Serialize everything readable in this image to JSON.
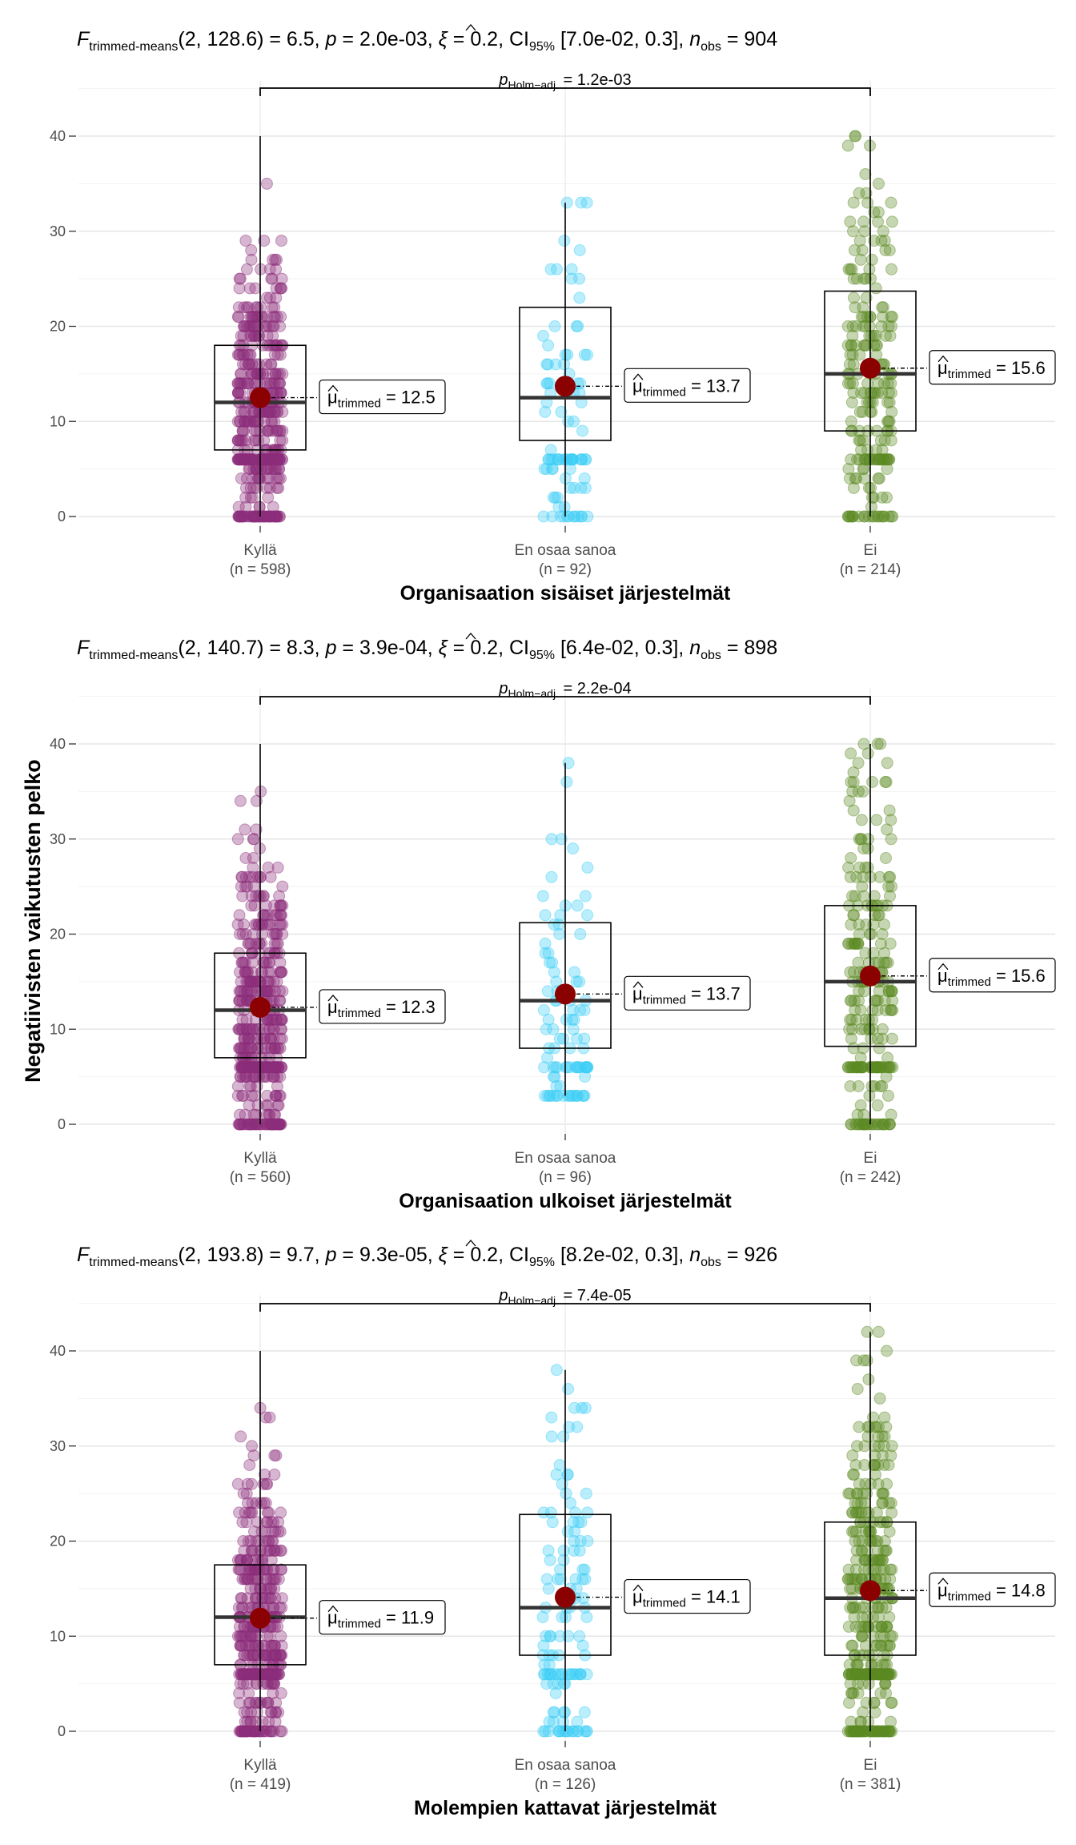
{
  "colors": {
    "group_1": "#8B2D7A",
    "group_2": "#3CCDF5",
    "group_3": "#5C8A21",
    "mean_point": "#8B0000",
    "grid": "#ebebeb"
  },
  "ylabel": "Negatiivisten vaikutusten pelko",
  "chart_data": [
    {
      "type": "scatter",
      "subtitle": {
        "f_sym": "F",
        "f_sub": "trimmed-means",
        "f_args": "(2, 128.6) = 6.5, ",
        "p_sym": "p",
        "p_val": " = 2.0e-03, ",
        "xi_sym": "ξ",
        "xi_val": " = 0.2, ",
        "ci_sym": "CI",
        "ci_sub": "95%",
        "ci_val": " [7.0e-02, 0.3], ",
        "n_sym": "n",
        "n_sub": "obs",
        "n_val": " = 904"
      },
      "xlabel": "Organisaation sisäiset järjestelmät",
      "ylim": [
        0,
        42
      ],
      "y_ticks": [
        0,
        10,
        20,
        30,
        40
      ],
      "pairwise": {
        "p_sym": "p",
        "p_sub": "Holm−adj.",
        "p_val": " = 1.2e-03"
      },
      "categories": [
        {
          "name": "Kyllä",
          "n_label": "(n = 598)",
          "n": 598,
          "box": [
            7,
            12,
            18
          ],
          "whisker": [
            0,
            40
          ],
          "mean": 12.5,
          "mu_sym": "μ",
          "mu_sub": "trimmed",
          "mu_val": " = 12.5"
        },
        {
          "name": "En osaa sanoa",
          "n_label": "(n = 92)",
          "n": 92,
          "box": [
            8,
            12.5,
            22
          ],
          "whisker": [
            0,
            33
          ],
          "mean": 13.7,
          "mu_sym": "μ",
          "mu_sub": "trimmed",
          "mu_val": " = 13.7"
        },
        {
          "name": "Ei",
          "n_label": "(n = 214)",
          "n": 214,
          "box": [
            9,
            15,
            23.7
          ],
          "whisker": [
            0,
            40
          ],
          "mean": 15.6,
          "mu_sym": "μ",
          "mu_sub": "trimmed",
          "mu_val": " = 15.6"
        }
      ]
    },
    {
      "type": "scatter",
      "subtitle": {
        "f_sym": "F",
        "f_sub": "trimmed-means",
        "f_args": "(2, 140.7) = 8.3, ",
        "p_sym": "p",
        "p_val": " = 3.9e-04, ",
        "xi_sym": "ξ",
        "xi_val": " = 0.2, ",
        "ci_sym": "CI",
        "ci_sub": "95%",
        "ci_val": " [6.4e-02, 0.3], ",
        "n_sym": "n",
        "n_sub": "obs",
        "n_val": " = 898"
      },
      "xlabel": "Organisaation ulkoiset järjestelmät",
      "ylim": [
        0,
        42
      ],
      "y_ticks": [
        0,
        10,
        20,
        30,
        40
      ],
      "pairwise": {
        "p_sym": "p",
        "p_sub": "Holm−adj.",
        "p_val": " = 2.2e-04"
      },
      "categories": [
        {
          "name": "Kyllä",
          "n_label": "(n = 560)",
          "n": 560,
          "box": [
            7,
            12,
            18
          ],
          "whisker": [
            0,
            40
          ],
          "mean": 12.3,
          "mu_sym": "μ",
          "mu_sub": "trimmed",
          "mu_val": " = 12.3"
        },
        {
          "name": "En osaa sanoa",
          "n_label": "(n = 96)",
          "n": 96,
          "box": [
            8,
            13,
            21.2
          ],
          "whisker": [
            3,
            38
          ],
          "mean": 13.7,
          "mu_sym": "μ",
          "mu_sub": "trimmed",
          "mu_val": " = 13.7"
        },
        {
          "name": "Ei",
          "n_label": "(n = 242)",
          "n": 242,
          "box": [
            8.2,
            15,
            23
          ],
          "whisker": [
            0,
            40
          ],
          "mean": 15.6,
          "mu_sym": "μ",
          "mu_sub": "trimmed",
          "mu_val": " = 15.6"
        }
      ]
    },
    {
      "type": "scatter",
      "subtitle": {
        "f_sym": "F",
        "f_sub": "trimmed-means",
        "f_args": "(2, 193.8) = 9.7, ",
        "p_sym": "p",
        "p_val": " = 9.3e-05, ",
        "xi_sym": "ξ",
        "xi_val": " = 0.2, ",
        "ci_sym": "CI",
        "ci_sub": "95%",
        "ci_val": " [8.2e-02, 0.3], ",
        "n_sym": "n",
        "n_sub": "obs",
        "n_val": " = 926"
      },
      "xlabel": "Molempien kattavat järjestelmät",
      "ylim": [
        0,
        42
      ],
      "y_ticks": [
        0,
        10,
        20,
        30,
        40
      ],
      "pairwise": {
        "p_sym": "p",
        "p_sub": "Holm−adj.",
        "p_val": " = 7.4e-05"
      },
      "categories": [
        {
          "name": "Kyllä",
          "n_label": "(n = 419)",
          "n": 419,
          "box": [
            7,
            12,
            17.5
          ],
          "whisker": [
            0,
            40
          ],
          "mean": 11.9,
          "mu_sym": "μ",
          "mu_sub": "trimmed",
          "mu_val": " = 11.9"
        },
        {
          "name": "En osaa sanoa",
          "n_label": "(n = 126)",
          "n": 126,
          "box": [
            8,
            13,
            22.8
          ],
          "whisker": [
            0,
            38
          ],
          "mean": 14.1,
          "mu_sym": "μ",
          "mu_sub": "trimmed",
          "mu_val": " = 14.1"
        },
        {
          "name": "Ei",
          "n_label": "(n = 381)",
          "n": 381,
          "box": [
            8,
            14,
            22
          ],
          "whisker": [
            0,
            42
          ],
          "mean": 14.8,
          "mu_sym": "μ",
          "mu_sub": "trimmed",
          "mu_val": " = 14.8"
        }
      ]
    }
  ]
}
